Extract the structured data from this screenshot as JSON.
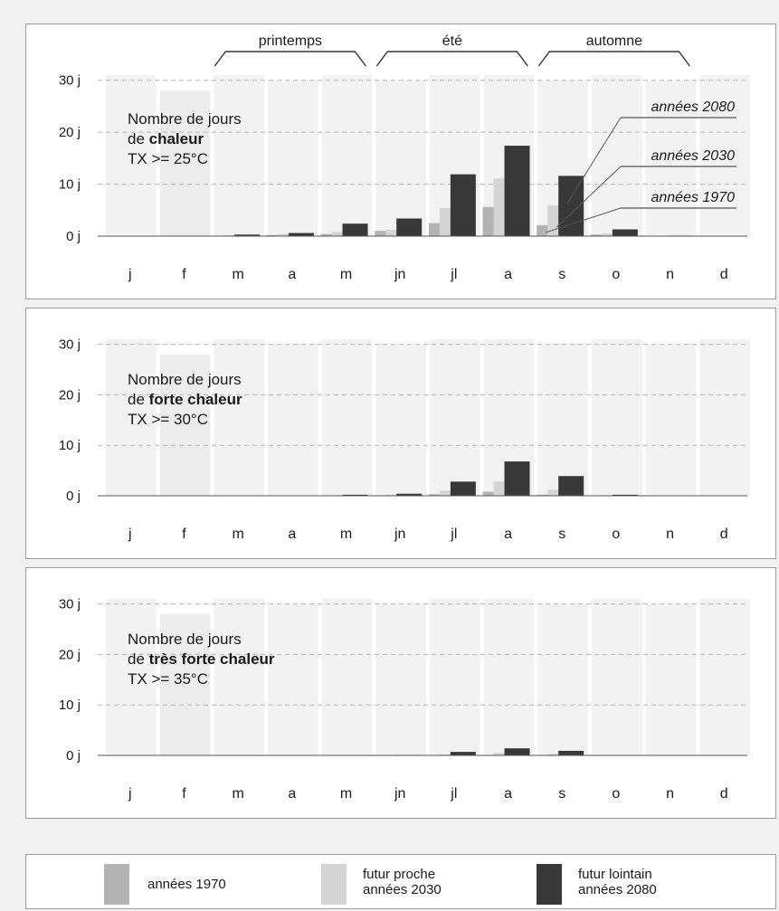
{
  "colors": {
    "c1970": "#b3b3b3",
    "c2030": "#d4d4d4",
    "c2080": "#383838",
    "month_bg": "#f2f2f2",
    "feb_bg": "#ececec"
  },
  "seasons": [
    {
      "label": "printemps",
      "start": 2,
      "end": 4
    },
    {
      "label": "été",
      "start": 5,
      "end": 7
    },
    {
      "label": "automne",
      "start": 8,
      "end": 10
    }
  ],
  "chart_data": [
    {
      "type": "bar",
      "title_line1": "Nombre de jours",
      "title_prefix": "de ",
      "title_bold": "chaleur",
      "title_line3": "TX >= 25°C",
      "categories": [
        "j",
        "f",
        "m",
        "a",
        "m",
        "jn",
        "jl",
        "a",
        "s",
        "o",
        "n",
        "d"
      ],
      "month_days": [
        31,
        28,
        31,
        30,
        31,
        30,
        31,
        31,
        30,
        31,
        30,
        31
      ],
      "ylim": [
        0,
        31
      ],
      "yticks": [
        0,
        10,
        20,
        30
      ],
      "ytick_labels": [
        "0 j",
        "10 j",
        "20 j",
        "30 j"
      ],
      "series": [
        {
          "name": "années 1970",
          "values": [
            0,
            0,
            0.1,
            0.2,
            0.4,
            1.0,
            2.5,
            5.6,
            2.1,
            0.3,
            0,
            0
          ]
        },
        {
          "name": "années 2030",
          "values": [
            0,
            0,
            0.2,
            0.4,
            0.8,
            1.2,
            5.4,
            11.1,
            5.9,
            0.5,
            0,
            0
          ]
        },
        {
          "name": "années 2080",
          "values": [
            0,
            0,
            0.3,
            0.6,
            2.4,
            3.4,
            11.9,
            17.4,
            11.6,
            1.3,
            0.1,
            0
          ]
        }
      ],
      "annotations": [
        "années 2080",
        "années 2030",
        "années 1970"
      ]
    },
    {
      "type": "bar",
      "title_line1": "Nombre de jours",
      "title_prefix": "de ",
      "title_bold": "forte chaleur",
      "title_line3": "TX >= 30°C",
      "categories": [
        "j",
        "f",
        "m",
        "a",
        "m",
        "jn",
        "jl",
        "a",
        "s",
        "o",
        "n",
        "d"
      ],
      "month_days": [
        31,
        28,
        31,
        30,
        31,
        30,
        31,
        31,
        30,
        31,
        30,
        31
      ],
      "ylim": [
        0,
        31
      ],
      "yticks": [
        0,
        10,
        20,
        30
      ],
      "ytick_labels": [
        "0 j",
        "10 j",
        "20 j",
        "30 j"
      ],
      "series": [
        {
          "name": "années 1970",
          "values": [
            0,
            0,
            0,
            0,
            0,
            0.1,
            0.3,
            0.8,
            0.2,
            0,
            0,
            0
          ]
        },
        {
          "name": "années 2030",
          "values": [
            0,
            0,
            0,
            0,
            0.1,
            0.2,
            1.0,
            2.8,
            1.2,
            0.1,
            0,
            0
          ]
        },
        {
          "name": "années 2080",
          "values": [
            0,
            0,
            0,
            0,
            0.2,
            0.4,
            2.8,
            6.8,
            3.9,
            0.2,
            0,
            0
          ]
        }
      ]
    },
    {
      "type": "bar",
      "title_line1": "Nombre de jours",
      "title_prefix": "de ",
      "title_bold": "très forte chaleur",
      "title_line3": "TX >= 35°C",
      "categories": [
        "j",
        "f",
        "m",
        "a",
        "m",
        "jn",
        "jl",
        "a",
        "s",
        "o",
        "n",
        "d"
      ],
      "month_days": [
        31,
        28,
        31,
        30,
        31,
        30,
        31,
        31,
        30,
        31,
        30,
        31
      ],
      "ylim": [
        0,
        31
      ],
      "yticks": [
        0,
        10,
        20,
        30
      ],
      "ytick_labels": [
        "0 j",
        "10 j",
        "20 j",
        "30 j"
      ],
      "series": [
        {
          "name": "années 1970",
          "values": [
            0,
            0,
            0,
            0,
            0,
            0,
            0,
            0.1,
            0,
            0,
            0,
            0
          ]
        },
        {
          "name": "années 2030",
          "values": [
            0,
            0,
            0,
            0,
            0,
            0,
            0.2,
            0.5,
            0.3,
            0,
            0,
            0
          ]
        },
        {
          "name": "années 2080",
          "values": [
            0,
            0,
            0,
            0,
            0,
            0.1,
            0.7,
            1.4,
            0.9,
            0,
            0,
            0
          ]
        }
      ]
    }
  ],
  "legend": [
    {
      "line1": "années 1970",
      "line2": ""
    },
    {
      "line1": "futur proche",
      "line2": "années 2030"
    },
    {
      "line1": "futur lointain",
      "line2": "années 2080"
    }
  ]
}
